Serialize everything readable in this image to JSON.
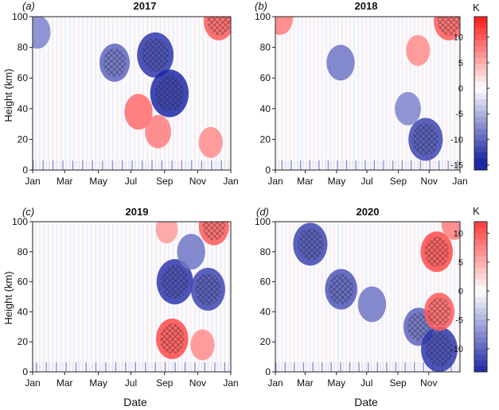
{
  "figure": {
    "ylabel": "Height (km)",
    "xlabel": "Date"
  },
  "chart_data": [
    {
      "type": "heatmap",
      "panel": "(a)",
      "title": "2017",
      "xlabel": "",
      "ylabel": "Height (km)",
      "x_ticks": [
        "Jan",
        "Mar",
        "May",
        "Jul",
        "Sep",
        "Nov",
        "Jan"
      ],
      "y_ticks": [
        0,
        20,
        40,
        60,
        80,
        100
      ],
      "ylim": [
        0,
        100
      ],
      "xlim": [
        "2017-01-01",
        "2018-01-01"
      ],
      "colorbar": {
        "label": "K",
        "ticks": [
          10,
          5,
          0,
          -5,
          -10,
          -15
        ],
        "range": [
          -16,
          14
        ]
      },
      "features": [
        {
          "kind": "warm",
          "date": "2017-07-15",
          "height": 38,
          "value": 9
        },
        {
          "kind": "warm",
          "date": "2017-08-20",
          "height": 25,
          "value": 8
        },
        {
          "kind": "warm",
          "date": "2017-11-25",
          "height": 18,
          "value": 7
        },
        {
          "kind": "warm",
          "date": "2017-12-10",
          "height": 97,
          "value": 10
        },
        {
          "kind": "cold",
          "date": "2017-08-15",
          "height": 75,
          "value": -13
        },
        {
          "kind": "cold",
          "date": "2017-09-10",
          "height": 50,
          "value": -14
        },
        {
          "kind": "cold",
          "date": "2017-06-01",
          "height": 70,
          "value": -10
        },
        {
          "kind": "cold",
          "date": "2017-01-10",
          "height": 90,
          "value": -8
        }
      ]
    },
    {
      "type": "heatmap",
      "panel": "(b)",
      "title": "2018",
      "xlabel": "",
      "ylabel": "",
      "x_ticks": [
        "Jan",
        "Mar",
        "May",
        "Jul",
        "Sep",
        "Nov",
        "Jan"
      ],
      "y_ticks": [
        0,
        20,
        40,
        60,
        80,
        100
      ],
      "ylim": [
        0,
        100
      ],
      "xlim": [
        "2018-01-01",
        "2019-01-01"
      ],
      "colorbar": {
        "label": "K",
        "ticks": [
          10,
          5,
          0,
          -5,
          -10,
          -15
        ],
        "range": [
          -16,
          14
        ]
      },
      "features": [
        {
          "kind": "cold",
          "date": "2018-10-25",
          "height": 20,
          "value": -12
        },
        {
          "kind": "cold",
          "date": "2018-09-20",
          "height": 40,
          "value": -8
        },
        {
          "kind": "cold",
          "date": "2018-05-10",
          "height": 70,
          "value": -9
        },
        {
          "kind": "warm",
          "date": "2018-10-10",
          "height": 78,
          "value": 7
        },
        {
          "kind": "warm",
          "date": "2018-12-10",
          "height": 97,
          "value": 10
        },
        {
          "kind": "warm",
          "date": "2018-01-10",
          "height": 99,
          "value": 8
        }
      ]
    },
    {
      "type": "heatmap",
      "panel": "(c)",
      "title": "2019",
      "xlabel": "Date",
      "ylabel": "Height (km)",
      "x_ticks": [
        "Jan",
        "Mar",
        "May",
        "Jul",
        "Sep",
        "Nov",
        "Jan"
      ],
      "y_ticks": [
        0,
        20,
        40,
        60,
        80,
        100
      ],
      "ylim": [
        0,
        100
      ],
      "xlim": [
        "2019-01-01",
        "2020-01-01"
      ],
      "colorbar": null,
      "features": [
        {
          "kind": "cold",
          "date": "2019-09-20",
          "height": 60,
          "value": -13
        },
        {
          "kind": "cold",
          "date": "2019-11-20",
          "height": 55,
          "value": -12
        },
        {
          "kind": "cold",
          "date": "2019-10-20",
          "height": 80,
          "value": -9
        },
        {
          "kind": "warm",
          "date": "2019-09-15",
          "height": 22,
          "value": 11
        },
        {
          "kind": "warm",
          "date": "2019-11-10",
          "height": 18,
          "value": 7
        },
        {
          "kind": "warm",
          "date": "2019-12-01",
          "height": 97,
          "value": 10
        },
        {
          "kind": "warm",
          "date": "2019-09-05",
          "height": 95,
          "value": 6
        }
      ]
    },
    {
      "type": "heatmap",
      "panel": "(d)",
      "title": "2020",
      "xlabel": "Date",
      "ylabel": "",
      "x_ticks": [
        "Jan",
        "Mar",
        "May",
        "Jul",
        "Sep",
        "Nov"
      ],
      "y_ticks": [
        0,
        20,
        40,
        60,
        80,
        100
      ],
      "ylim": [
        0,
        100
      ],
      "xlim": [
        "2020-01-01",
        "2020-12-31"
      ],
      "colorbar": {
        "label": "K",
        "ticks": [
          10,
          5,
          0,
          -5,
          -10
        ],
        "range": [
          -14,
          12
        ]
      },
      "features": [
        {
          "kind": "cold",
          "date": "2020-03-10",
          "height": 85,
          "value": -12
        },
        {
          "kind": "cold",
          "date": "2020-05-10",
          "height": 55,
          "value": -11
        },
        {
          "kind": "cold",
          "date": "2020-07-10",
          "height": 45,
          "value": -9
        },
        {
          "kind": "cold",
          "date": "2020-10-10",
          "height": 30,
          "value": -10
        },
        {
          "kind": "cold",
          "date": "2020-11-20",
          "height": 15,
          "value": -13
        },
        {
          "kind": "warm",
          "date": "2020-11-15",
          "height": 80,
          "value": 11
        },
        {
          "kind": "warm",
          "date": "2020-11-20",
          "height": 40,
          "value": 10
        },
        {
          "kind": "warm",
          "date": "2020-12-20",
          "height": 99,
          "value": 8
        }
      ]
    }
  ]
}
